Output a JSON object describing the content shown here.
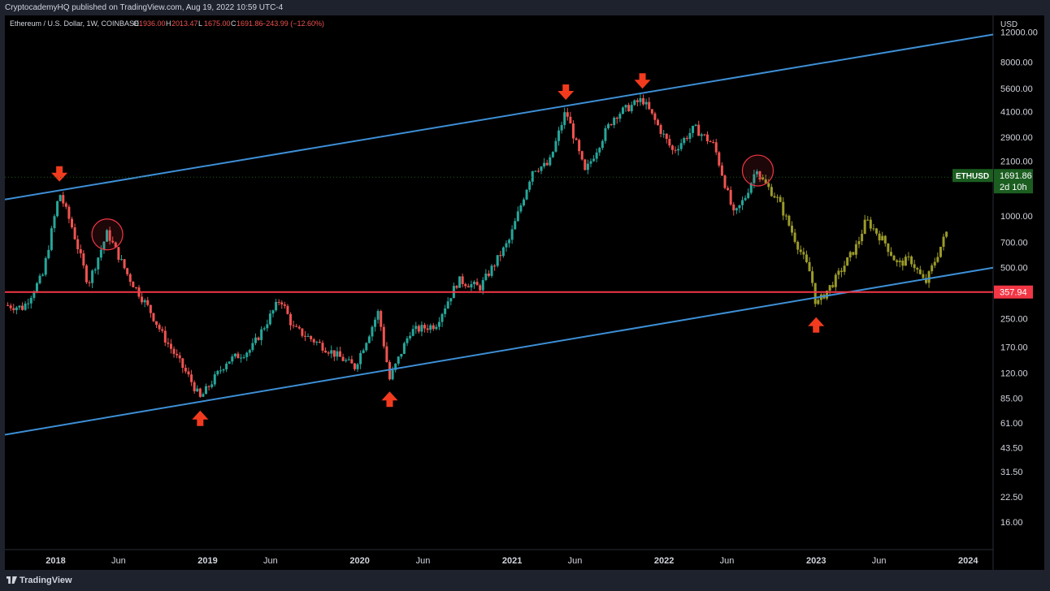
{
  "header": {
    "publish_line": "CryptocademyHQ published on TradingView.com, Aug 19, 2022 10:59 UTC-4"
  },
  "legend": {
    "symbol": "Ethereum / U.S. Dollar, 1W, COINBASE",
    "open_label": "O",
    "open": "1936.00",
    "high_label": "H",
    "high": "2013.47",
    "low_label": "L",
    "low": "1675.00",
    "close_label": "C",
    "close": "1691.86",
    "change": "−243.99 (−12.60%)"
  },
  "footer": {
    "brand": "TradingView"
  },
  "colors": {
    "background": "#000000",
    "up_candle": "#26a69a",
    "down_candle": "#ef5350",
    "projection": "#9b9a2a",
    "channel": "#3d8fd6",
    "support": "#f23645",
    "marker": "#f23b1e",
    "price_tag": "#1b5e20"
  },
  "chart_data": {
    "type": "candlestick",
    "title": "Ethereum / U.S. Dollar, 1W, COINBASE",
    "y_scale": "log",
    "ylabel": "USD",
    "ylim": [
      11,
      13500
    ],
    "y_ticks": [
      "12000.00",
      "8000.00",
      "5600.00",
      "4100.00",
      "2900.00",
      "2100.00",
      "1000.00",
      "700.00",
      "500.00",
      "250.00",
      "170.00",
      "120.00",
      "85.00",
      "61.00",
      "43.50",
      "31.50",
      "22.50",
      "16.00"
    ],
    "x_range": [
      "2017-09-01",
      "2024-03-01"
    ],
    "x_ticks": [
      {
        "label": "2018",
        "date": "2018-01-01",
        "bold": true
      },
      {
        "label": "Jun",
        "date": "2018-06-01",
        "bold": false
      },
      {
        "label": "2019",
        "date": "2019-01-01",
        "bold": true
      },
      {
        "label": "Jun",
        "date": "2019-06-01",
        "bold": false
      },
      {
        "label": "2020",
        "date": "2020-01-01",
        "bold": true
      },
      {
        "label": "Jun",
        "date": "2020-06-01",
        "bold": false
      },
      {
        "label": "2021",
        "date": "2021-01-01",
        "bold": true
      },
      {
        "label": "Jun",
        "date": "2021-06-01",
        "bold": false
      },
      {
        "label": "2022",
        "date": "2022-01-01",
        "bold": true
      },
      {
        "label": "Jun",
        "date": "2022-06-01",
        "bold": false
      },
      {
        "label": "2023",
        "date": "2023-01-01",
        "bold": true
      },
      {
        "label": "Jun",
        "date": "2023-06-01",
        "bold": false
      },
      {
        "label": "2024",
        "date": "2024-01-01",
        "bold": true
      }
    ],
    "price_path": [
      [
        "2017-09-01",
        300
      ],
      [
        "2017-10-15",
        290
      ],
      [
        "2017-12-01",
        450
      ],
      [
        "2018-01-10",
        1380
      ],
      [
        "2018-02-10",
        850
      ],
      [
        "2018-03-20",
        400
      ],
      [
        "2018-05-05",
        800
      ],
      [
        "2018-06-25",
        440
      ],
      [
        "2018-08-15",
        280
      ],
      [
        "2018-09-15",
        200
      ],
      [
        "2018-11-20",
        110
      ],
      [
        "2018-12-14",
        85
      ],
      [
        "2019-02-15",
        140
      ],
      [
        "2019-04-15",
        165
      ],
      [
        "2019-06-25",
        330
      ],
      [
        "2019-07-25",
        220
      ],
      [
        "2019-09-30",
        175
      ],
      [
        "2019-12-20",
        130
      ],
      [
        "2020-02-15",
        275
      ],
      [
        "2020-03-13",
        110
      ],
      [
        "2020-05-01",
        210
      ],
      [
        "2020-07-01",
        230
      ],
      [
        "2020-08-25",
        420
      ],
      [
        "2020-10-15",
        380
      ],
      [
        "2020-12-25",
        720
      ],
      [
        "2021-02-20",
        1900
      ],
      [
        "2021-03-30",
        2000
      ],
      [
        "2021-05-10",
        4170
      ],
      [
        "2021-06-25",
        1800
      ],
      [
        "2021-08-15",
        3200
      ],
      [
        "2021-09-05",
        3900
      ],
      [
        "2021-11-10",
        4850
      ],
      [
        "2022-01-22",
        2400
      ],
      [
        "2022-03-15",
        3300
      ],
      [
        "2022-05-01",
        2600
      ],
      [
        "2022-06-18",
        1000
      ],
      [
        "2022-07-15",
        1300
      ],
      [
        "2022-08-14",
        2000
      ],
      [
        "2022-08-19",
        1691.86
      ]
    ],
    "projection_path": [
      [
        "2022-08-19",
        1691.86
      ],
      [
        "2022-10-01",
        1250
      ],
      [
        "2022-11-15",
        700
      ],
      [
        "2022-12-20",
        450
      ],
      [
        "2023-01-01",
        300
      ],
      [
        "2023-02-15",
        420
      ],
      [
        "2023-04-10",
        680
      ],
      [
        "2023-05-01",
        950
      ],
      [
        "2023-06-15",
        700
      ],
      [
        "2023-07-15",
        520
      ],
      [
        "2023-08-15",
        560
      ],
      [
        "2023-09-20",
        400
      ],
      [
        "2023-11-10",
        800
      ]
    ],
    "channel_upper": [
      [
        "2017-09-01",
        1250
      ],
      [
        "2024-01-01",
        11000
      ]
    ],
    "channel_lower": [
      [
        "2017-09-01",
        52
      ],
      [
        "2024-01-01",
        470
      ]
    ],
    "support_level": 357.94,
    "last_price": {
      "symbol": "ETHUSD",
      "value": "1691.86",
      "countdown": "2d 10h"
    },
    "support_tag": "357.94",
    "markers": [
      {
        "type": "sell",
        "date": "2018-01-10",
        "price": 1380
      },
      {
        "type": "sell",
        "date": "2021-05-10",
        "price": 4170
      },
      {
        "type": "sell",
        "date": "2021-11-10",
        "price": 4850
      },
      {
        "type": "buy",
        "date": "2018-12-14",
        "price": 85
      },
      {
        "type": "buy",
        "date": "2020-03-13",
        "price": 110
      },
      {
        "type": "buy",
        "date": "2023-01-01",
        "price": 300
      }
    ],
    "circles": [
      {
        "date": "2018-05-05",
        "price": 780
      },
      {
        "date": "2022-08-14",
        "price": 1850
      }
    ]
  }
}
